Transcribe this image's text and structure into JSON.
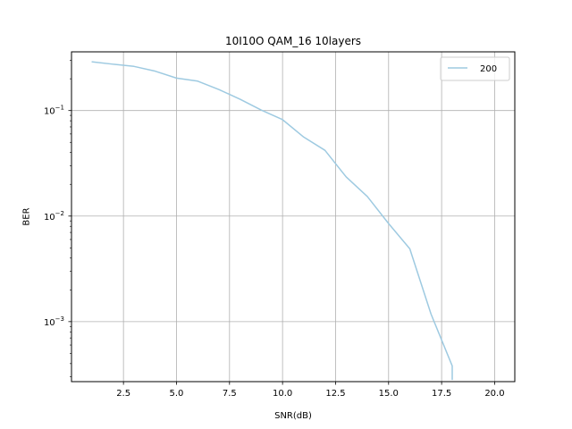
{
  "chart_data": {
    "type": "line",
    "title": "10I10O QAM_16 10layers",
    "xlabel": "SNR(dB)",
    "ylabel": "BER",
    "xlim": [
      0.05,
      20.95
    ],
    "ylim": [
      0.00027,
      0.36
    ],
    "yscale": "log",
    "grid": true,
    "legend_position": "top-right",
    "x_ticks": [
      2.5,
      5.0,
      7.5,
      10.0,
      12.5,
      15.0,
      17.5,
      20.0
    ],
    "x_tick_labels": [
      "2.5",
      "5.0",
      "7.5",
      "10.0",
      "12.5",
      "15.0",
      "17.5",
      "20.0"
    ],
    "y_ticks": [
      0.001,
      0.01,
      0.1
    ],
    "y_tick_labels": [
      {
        "base": "10",
        "exp": "−3"
      },
      {
        "base": "10",
        "exp": "−2"
      },
      {
        "base": "10",
        "exp": "−1"
      }
    ],
    "series": [
      {
        "name": "200",
        "color": "#9ecae1",
        "x": [
          1,
          2,
          3,
          4,
          5,
          6,
          7,
          8,
          9,
          10,
          11,
          12,
          13,
          14,
          15,
          16,
          17,
          18,
          18
        ],
        "y": [
          0.29,
          0.275,
          0.262,
          0.236,
          0.203,
          0.19,
          0.158,
          0.128,
          0.101,
          0.082,
          0.056,
          0.042,
          0.0235,
          0.0153,
          0.0085,
          0.0049,
          0.00118,
          0.00038,
          0.00028
        ]
      }
    ]
  }
}
